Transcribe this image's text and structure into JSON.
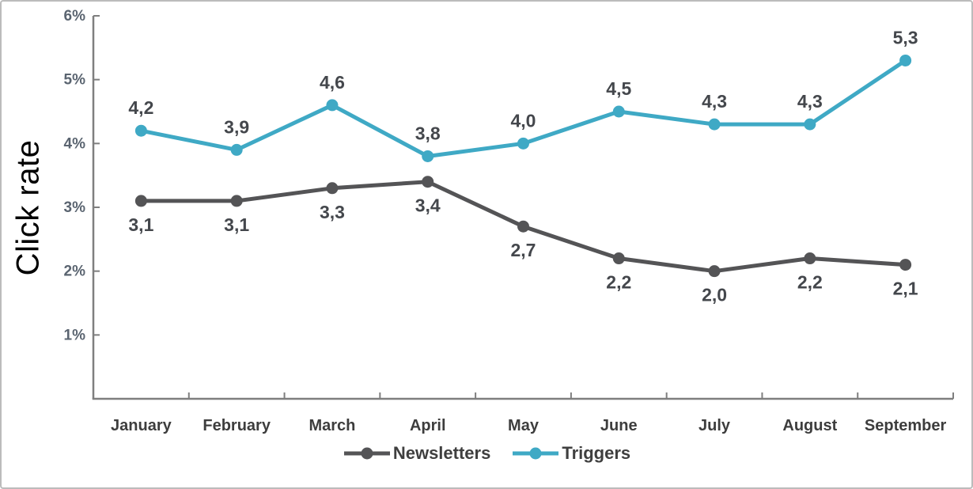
{
  "frame": {
    "background": "#ffffff",
    "border_color": "#bcbcbc"
  },
  "chart_data": {
    "type": "line",
    "title": "",
    "xlabel": "",
    "ylabel": "Click rate",
    "categories": [
      "January",
      "February",
      "March",
      "April",
      "May",
      "June",
      "July",
      "August",
      "September"
    ],
    "y_ticks": [
      "1%",
      "2%",
      "3%",
      "4%",
      "5%",
      "6%"
    ],
    "ylim": [
      0,
      6
    ],
    "grid": false,
    "legend_position": "bottom-center",
    "decimal_separator": ",",
    "axis_color": "#7f7f7f",
    "tick_label_color": "#5a6470",
    "category_label_color": "#3d3d3d",
    "value_label_color": "#44474c",
    "series": [
      {
        "name": "Newsletters",
        "color": "#545456",
        "values": [
          3.1,
          3.1,
          3.3,
          3.4,
          2.7,
          2.2,
          2.0,
          2.2,
          2.1
        ],
        "labels": [
          "3,1",
          "3,1",
          "3,3",
          "3,4",
          "2,7",
          "2,2",
          "2,0",
          "2,2",
          "2,1"
        ],
        "label_position": "below"
      },
      {
        "name": "Triggers",
        "color": "#3fa9c5",
        "values": [
          4.2,
          3.9,
          4.6,
          3.8,
          4.0,
          4.5,
          4.3,
          4.3,
          5.3
        ],
        "labels": [
          "4,2",
          "3,9",
          "4,6",
          "3,8",
          "4,0",
          "4,5",
          "4,3",
          "4,3",
          "5,3"
        ],
        "label_position": "above"
      }
    ]
  }
}
